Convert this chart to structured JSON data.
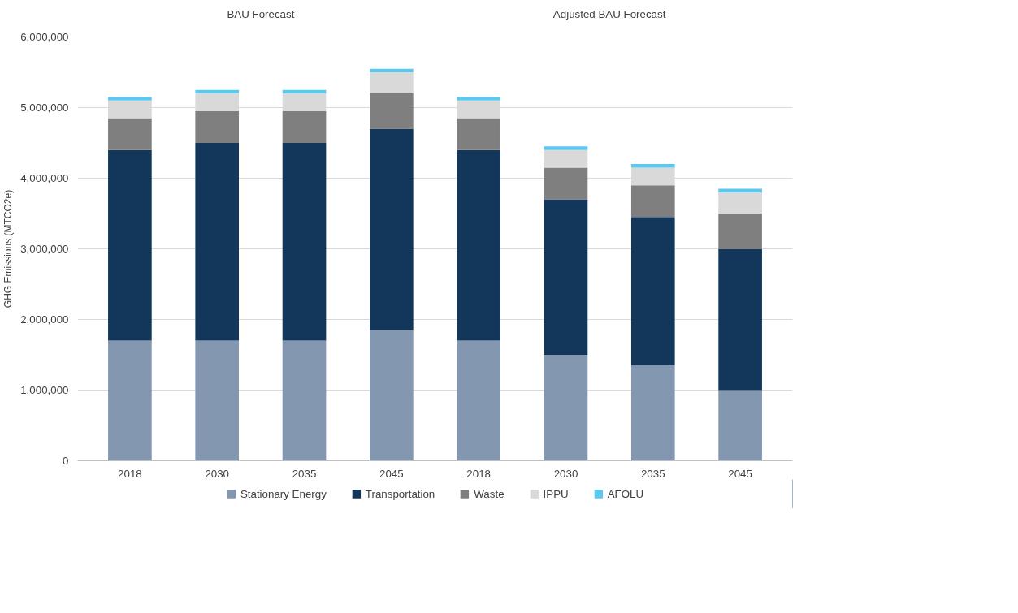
{
  "chart_data": {
    "type": "bar",
    "stacked": true,
    "categories": [
      "2018",
      "2030",
      "2035",
      "2045",
      "2018",
      "2030",
      "2035",
      "2045"
    ],
    "ylabel": "GHG Emissions (MTCO2e)",
    "annotations": [
      "BAU Forecast",
      "Adjusted BAU Forecast"
    ],
    "series": [
      {
        "name": "Stationary Energy",
        "color": "#8497b0",
        "values": [
          1700000,
          1700000,
          1700000,
          1850000,
          1700000,
          1500000,
          1350000,
          1000000
        ]
      },
      {
        "name": "Transportation",
        "color": "#12375a",
        "values": [
          2700000,
          2800000,
          2800000,
          2850000,
          2700000,
          2200000,
          2100000,
          2000000
        ]
      },
      {
        "name": "Waste",
        "color": "#7f7f7f",
        "values": [
          450000,
          450000,
          450000,
          500000,
          450000,
          450000,
          450000,
          500000
        ]
      },
      {
        "name": "IPPU",
        "color": "#d9d9d9",
        "values": [
          250000,
          250000,
          250000,
          300000,
          250000,
          250000,
          250000,
          300000
        ]
      },
      {
        "name": "AFOLU",
        "color": "#5bc8f0",
        "values": [
          50000,
          50000,
          50000,
          50000,
          50000,
          50000,
          50000,
          50000
        ]
      }
    ],
    "ylim": [
      0,
      6000000
    ],
    "yticks": [
      0,
      {
        "value": 1000000,
        "label": "1,000,000"
      },
      {
        "value": 2000000,
        "label": "2,000,000"
      },
      {
        "value": 3000000,
        "label": "3,000,000"
      },
      {
        "value": 4000000,
        "label": "4,000,000"
      },
      {
        "value": 5000000,
        "label": "5,000,000"
      },
      {
        "value": 6000000,
        "label": "6,000,000"
      }
    ],
    "grid": "y",
    "legend": "bottom"
  }
}
